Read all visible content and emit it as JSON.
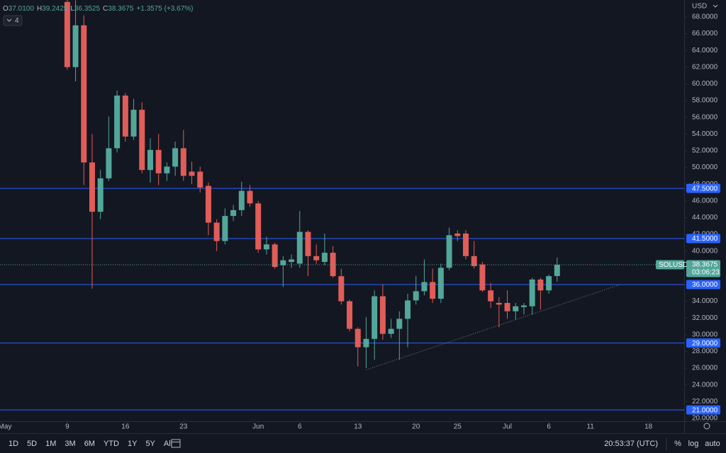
{
  "chart_data": {
    "type": "candlestick",
    "symbol": "SOLUSD",
    "currency": "USD",
    "header": {
      "items": [
        {
          "label": "O",
          "value": "37.0100"
        },
        {
          "label": "H",
          "value": "39.2425"
        },
        {
          "label": "L",
          "value": "36.3525"
        },
        {
          "label": "C",
          "value": "38.3675"
        }
      ],
      "change": "+1.3575 (+3.67%)",
      "indicators": "4"
    },
    "countdown": "03:06:23",
    "up_color": "#53a69a",
    "down_color": "#e05d58",
    "x": [
      0,
      1,
      2,
      3,
      4,
      5,
      6,
      7,
      8,
      9,
      10,
      11,
      12,
      13,
      14,
      15,
      16,
      17,
      18,
      19,
      20,
      21,
      22,
      23,
      24,
      25,
      26,
      27,
      28,
      29,
      30,
      31,
      32,
      33,
      34,
      35,
      36,
      37,
      38,
      39,
      40,
      41,
      42,
      43,
      44,
      45,
      46,
      47,
      48,
      49,
      50,
      51,
      52,
      53,
      54,
      55,
      56,
      57,
      58,
      59
    ],
    "open": [
      69.8,
      62.0,
      67.0,
      50.6,
      44.7,
      48.7,
      52.3,
      58.6,
      53.7,
      56.9,
      49.7,
      52.1,
      49.3,
      50.1,
      52.3,
      49.5,
      49.5,
      47.8,
      43.4,
      41.2,
      44.2,
      44.9,
      47.2,
      45.7,
      40.2,
      40.8,
      38.3,
      38.7,
      38.5,
      42.3,
      39.4,
      38.7,
      39.8,
      37.0,
      34.0,
      30.7,
      28.5,
      29.5,
      34.6,
      30.1,
      30.7,
      31.9,
      34.1,
      35.2,
      36.3,
      34.3,
      38.0,
      42.1,
      42.1,
      39.4,
      38.4,
      35.3,
      33.8,
      33.8,
      32.8,
      33.3,
      33.4,
      36.6,
      35.3,
      37.01
    ],
    "high": [
      71.1,
      70.0,
      68.2,
      54.0,
      49.7,
      56.1,
      59.2,
      58.9,
      58.2,
      57.8,
      53.5,
      54.0,
      50.6,
      53.1,
      54.5,
      50.7,
      50.1,
      48.2,
      43.8,
      45.1,
      45.5,
      48.3,
      47.9,
      46.0,
      41.7,
      41.0,
      39.4,
      39.6,
      44.8,
      42.5,
      40.8,
      42.1,
      40.6,
      37.9,
      34.2,
      30.9,
      32.1,
      35.3,
      36.0,
      31.9,
      32.8,
      34.9,
      37.0,
      39.0,
      37.9,
      38.5,
      42.8,
      42.5,
      42.5,
      41.2,
      38.7,
      36.2,
      34.5,
      35.3,
      33.8,
      33.8,
      36.8,
      36.8,
      37.2,
      39.2425
    ],
    "low": [
      61.7,
      60.3,
      47.9,
      35.5,
      43.8,
      48.4,
      51.8,
      53.1,
      53.3,
      49.3,
      48.2,
      47.9,
      48.4,
      49.0,
      48.4,
      48.0,
      47.0,
      41.9,
      40.0,
      40.8,
      43.6,
      44.2,
      45.3,
      39.8,
      39.6,
      37.9,
      35.7,
      38.0,
      38.0,
      37.0,
      38.5,
      38.3,
      36.8,
      33.6,
      30.4,
      26.2,
      26.0,
      27.0,
      29.4,
      29.6,
      27.0,
      28.5,
      33.6,
      34.7,
      33.8,
      33.8,
      37.7,
      41.2,
      39.0,
      37.9,
      35.1,
      33.2,
      30.9,
      31.9,
      31.8,
      32.4,
      32.4,
      33.0,
      34.9,
      36.3525
    ],
    "close": [
      62.0,
      67.0,
      50.6,
      44.7,
      48.7,
      52.3,
      58.6,
      53.7,
      56.9,
      49.7,
      52.1,
      49.3,
      50.1,
      52.3,
      49.0,
      49.0,
      47.6,
      43.4,
      41.2,
      44.2,
      44.9,
      47.2,
      45.7,
      40.2,
      40.8,
      38.1,
      38.9,
      39.0,
      42.3,
      39.4,
      38.9,
      39.8,
      37.0,
      34.0,
      30.7,
      28.5,
      29.5,
      34.6,
      30.1,
      30.7,
      31.9,
      34.1,
      35.2,
      36.3,
      34.3,
      38.0,
      41.9,
      41.8,
      39.4,
      38.2,
      35.3,
      34.0,
      33.6,
      32.8,
      33.4,
      33.5,
      36.6,
      35.3,
      37.0,
      38.3675
    ],
    "xlim": [
      -8.1,
      74.3
    ],
    "xticks": [
      {
        "value": -8,
        "label": "May"
      },
      {
        "value": 0,
        "label": "9"
      },
      {
        "value": 7,
        "label": "16"
      },
      {
        "value": 14,
        "label": "23"
      },
      {
        "value": 23,
        "label": "Jun"
      },
      {
        "value": 28,
        "label": "6"
      },
      {
        "value": 35,
        "label": "13"
      },
      {
        "value": 42,
        "label": "20"
      },
      {
        "value": 47,
        "label": "25"
      },
      {
        "value": 53,
        "label": "Jul"
      },
      {
        "value": 58,
        "label": "6"
      },
      {
        "value": 63,
        "label": "11"
      },
      {
        "value": 70,
        "label": "18"
      }
    ],
    "ylim": [
      19.66,
      70.03
    ],
    "yticks": [
      {
        "value": 20,
        "label": "20.0000"
      },
      {
        "value": 22,
        "label": "22.0000"
      },
      {
        "value": 24,
        "label": "24.0000"
      },
      {
        "value": 26,
        "label": "26.0000"
      },
      {
        "value": 28,
        "label": "28.0000"
      },
      {
        "value": 30,
        "label": "30.0000"
      },
      {
        "value": 32,
        "label": "32.0000"
      },
      {
        "value": 34,
        "label": "34.0000"
      },
      {
        "value": 36,
        "label": "36.0000"
      },
      {
        "value": 38,
        "label": "38.0000"
      },
      {
        "value": 40,
        "label": "40.0000"
      },
      {
        "value": 42,
        "label": "42.0000"
      },
      {
        "value": 44,
        "label": "44.0000"
      },
      {
        "value": 46,
        "label": "46.0000"
      },
      {
        "value": 48,
        "label": "48.0000"
      },
      {
        "value": 50,
        "label": "50.0000"
      },
      {
        "value": 52,
        "label": "52.0000"
      },
      {
        "value": 54,
        "label": "54.0000"
      },
      {
        "value": 56,
        "label": "56.0000"
      },
      {
        "value": 58,
        "label": "58.0000"
      },
      {
        "value": 60,
        "label": "60.0000"
      },
      {
        "value": 62,
        "label": "62.0000"
      },
      {
        "value": 64,
        "label": "64.0000"
      },
      {
        "value": 66,
        "label": "66.0000"
      },
      {
        "value": 68,
        "label": "68.0000"
      }
    ],
    "levels": [
      {
        "value": 47.5,
        "label": "47.5000"
      },
      {
        "value": 41.5,
        "label": "41.5000"
      },
      {
        "value": 36,
        "label": "36.0000"
      },
      {
        "value": 29,
        "label": "29.0000"
      },
      {
        "value": 21,
        "label": "21.0000"
      }
    ],
    "level_color": "#2962ff",
    "trendline": {
      "x": [
        36,
        66.6
      ],
      "y": [
        25.8,
        36.0
      ]
    }
  },
  "toolbar": {
    "ranges": [
      "1D",
      "5D",
      "1M",
      "3M",
      "6M",
      "YTD",
      "1Y",
      "5Y",
      "All"
    ],
    "clock": "20:53:37 (UTC)",
    "percent": "%",
    "log": "log",
    "auto": "auto"
  }
}
